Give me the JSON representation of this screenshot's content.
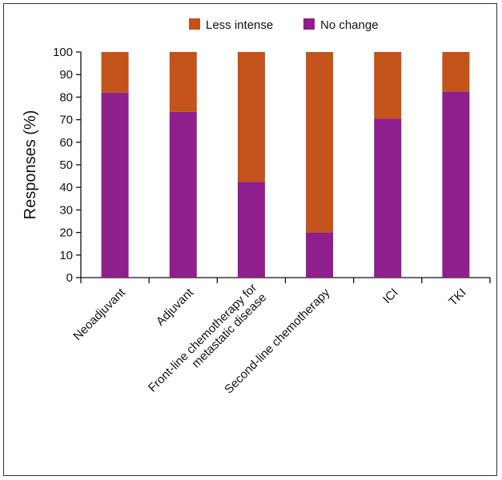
{
  "chart_data": {
    "type": "bar",
    "stacked": true,
    "categories": [
      [
        "Neoadjuvant"
      ],
      [
        "Adjuvant"
      ],
      [
        "Front-line chemotherapy for",
        "metastatic disease"
      ],
      [
        "Second-line chemotherapy"
      ],
      [
        "ICI"
      ],
      [
        "TKI"
      ]
    ],
    "series": [
      {
        "name": "No change",
        "color": "#8e1f8c",
        "values": [
          82,
          73.5,
          42.5,
          20,
          70.5,
          82.5
        ]
      },
      {
        "name": "Less intense",
        "color": "#c4521b",
        "values": [
          18,
          26.5,
          57.5,
          80,
          29.5,
          17.5
        ]
      }
    ],
    "legend_order": [
      "Less intense",
      "No change"
    ],
    "legend_position": "top",
    "ylabel": "Responses (%)",
    "xlabel": "",
    "ylim": [
      0,
      100
    ],
    "yticks": [
      0,
      10,
      20,
      30,
      40,
      50,
      60,
      70,
      80,
      90,
      100
    ],
    "grid": false
  }
}
